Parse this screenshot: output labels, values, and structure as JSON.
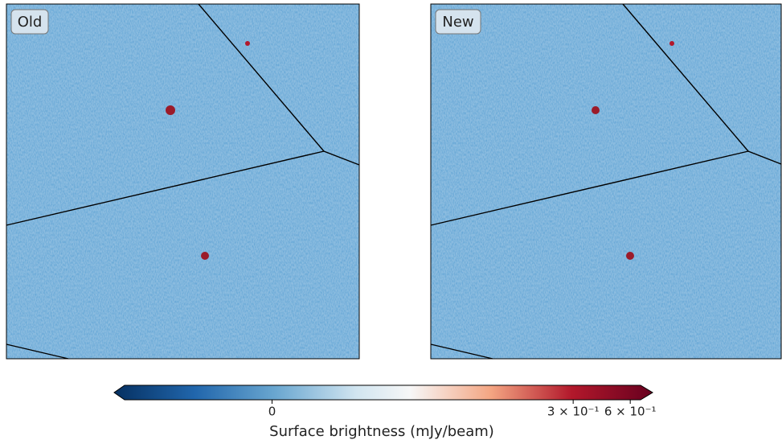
{
  "panels": [
    {
      "label": "Old"
    },
    {
      "label": "New"
    }
  ],
  "chart_data": {
    "type": "colorbar",
    "label": "Surface brightness (mJy/beam)",
    "scale": "symlog",
    "linthresh": 0.1,
    "xlim": [
      -0.07,
      0.68
    ],
    "xticks": [
      0,
      {
        "value": 0.3,
        "label": "3 × 10⁻¹"
      },
      {
        "value": 0.6,
        "label": "6 × 10⁻¹"
      }
    ]
  }
}
